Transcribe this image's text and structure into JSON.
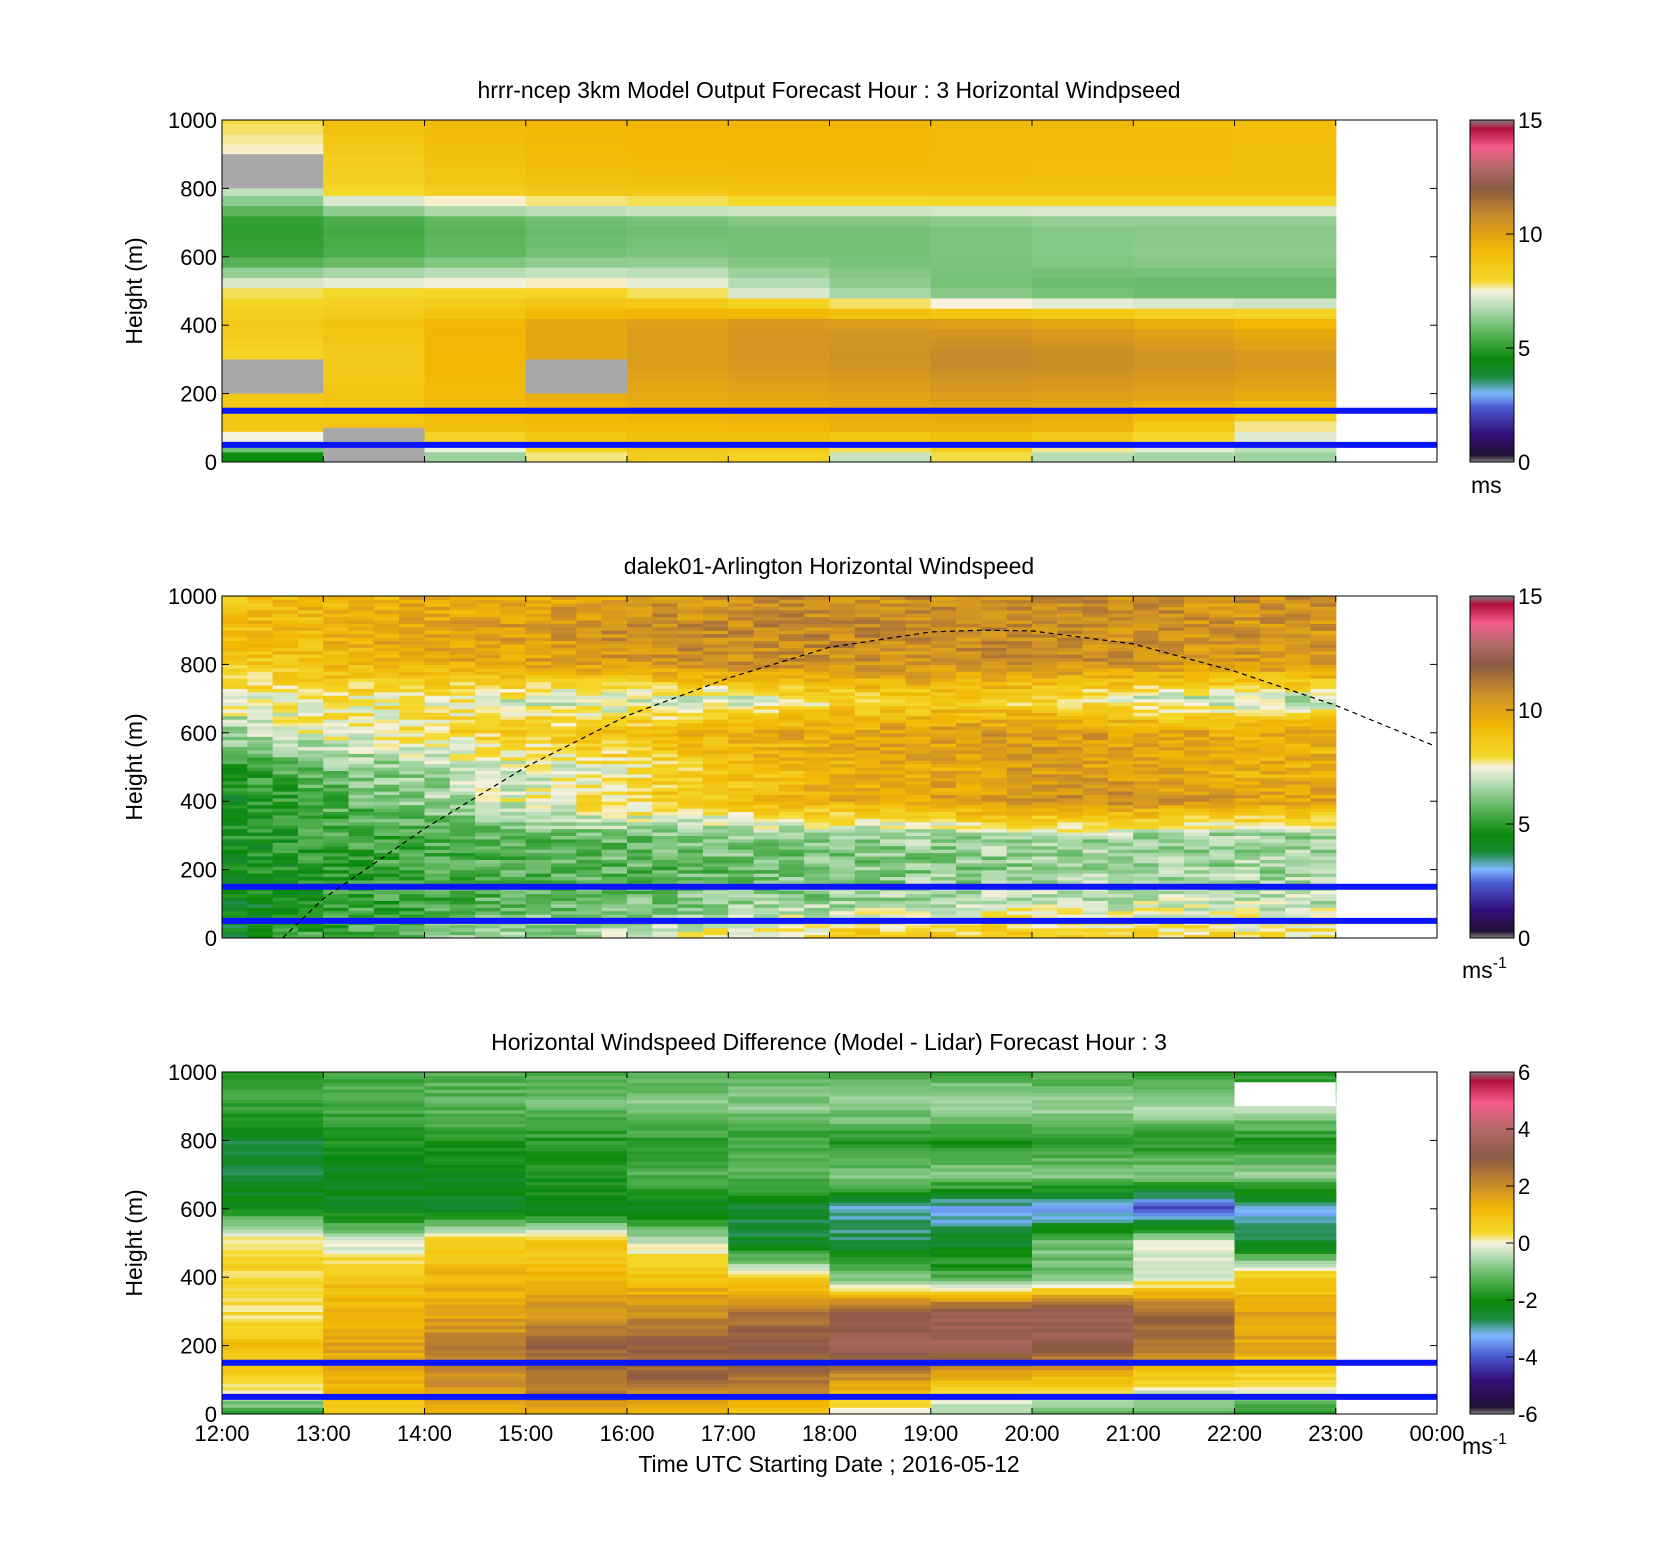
{
  "x_axis": {
    "ticks": [
      "12:00",
      "13:00",
      "14:00",
      "15:00",
      "16:00",
      "17:00",
      "18:00",
      "19:00",
      "20:00",
      "21:00",
      "22:00",
      "23:00",
      "00:00"
    ],
    "label": "Time UTC  Starting Date ; 2016-05-12"
  },
  "colormaps": {
    "speed": [
      [
        0.0,
        "#7f7f7f"
      ],
      [
        0.02,
        "#221133"
      ],
      [
        0.08,
        "#330f7a"
      ],
      [
        0.16,
        "#4a5ad0"
      ],
      [
        0.2,
        "#7db7ff"
      ],
      [
        0.25,
        "#1a8a3a"
      ],
      [
        0.3,
        "#0a8a0a"
      ],
      [
        0.38,
        "#5cb55c"
      ],
      [
        0.45,
        "#b4dcb4"
      ],
      [
        0.5,
        "#f6f2df"
      ],
      [
        0.53,
        "#f4d92a"
      ],
      [
        0.62,
        "#f2b705"
      ],
      [
        0.72,
        "#c98a2a"
      ],
      [
        0.8,
        "#8a5a44"
      ],
      [
        0.86,
        "#b46a6a"
      ],
      [
        0.92,
        "#f45d8a"
      ],
      [
        0.975,
        "#b30f3c"
      ],
      [
        1.0,
        "#7f7f7f"
      ]
    ],
    "diff": [
      [
        0.0,
        "#7f7f7f"
      ],
      [
        0.02,
        "#221133"
      ],
      [
        0.1,
        "#330f7a"
      ],
      [
        0.17,
        "#4a5ad0"
      ],
      [
        0.23,
        "#7db7ff"
      ],
      [
        0.28,
        "#1a8a3a"
      ],
      [
        0.33,
        "#0a8a0a"
      ],
      [
        0.4,
        "#5cb55c"
      ],
      [
        0.46,
        "#b4dcb4"
      ],
      [
        0.5,
        "#f6f2df"
      ],
      [
        0.53,
        "#f4d92a"
      ],
      [
        0.6,
        "#f2b705"
      ],
      [
        0.67,
        "#c98a2a"
      ],
      [
        0.75,
        "#8a5a44"
      ],
      [
        0.83,
        "#b46a6a"
      ],
      [
        0.91,
        "#f45d8a"
      ],
      [
        0.975,
        "#b30f3c"
      ],
      [
        1.0,
        "#7f7f7f"
      ]
    ]
  },
  "chart_data": [
    {
      "type": "heatmap",
      "title": "hrrr-ncep 3km Model Output   Forecast Hour : 3 Horizontal Windpseed",
      "xlabel": "",
      "ylabel": "Height (m)",
      "ylim": [
        0,
        1000
      ],
      "yticks": [
        "0",
        "200",
        "400",
        "600",
        "800",
        "1000"
      ],
      "colorbar": {
        "min": 0,
        "max": 15,
        "ticks": [
          "0",
          "5",
          "10",
          "15"
        ],
        "unit": "ms",
        "unit_sup": "",
        "cmap": "speed"
      },
      "reference_lines_m": [
        150,
        50
      ],
      "hours": [
        "12:00",
        "13:00",
        "14:00",
        "15:00",
        "16:00",
        "17:00",
        "18:00",
        "19:00",
        "20:00",
        "21:00",
        "22:00"
      ],
      "profiles_ms": [
        [
          3.8,
          4.5,
          6.0,
          7.5,
          8.3,
          8.0,
          6.5,
          7.6,
          6.3,
          6.2,
          6.3
        ],
        [
          8.7,
          8.8,
          9.0,
          9.1,
          9.2,
          9.3,
          9.5,
          9.5,
          9.4,
          8.6,
          7.6
        ],
        [
          8.6,
          8.8,
          9.2,
          9.6,
          9.8,
          9.9,
          10.0,
          10.2,
          10.1,
          10.0,
          9.8
        ],
        [
          8.0,
          8.5,
          9.3,
          9.8,
          10.2,
          10.4,
          10.6,
          10.9,
          10.8,
          10.6,
          10.4
        ],
        [
          8.6,
          8.9,
          9.4,
          9.9,
          10.2,
          10.4,
          10.4,
          10.3,
          10.1,
          9.8,
          9.5
        ],
        [
          7.8,
          7.9,
          8.0,
          8.1,
          7.7,
          7.0,
          6.4,
          6.0,
          5.8,
          5.7,
          5.7
        ],
        [
          5.2,
          5.5,
          5.8,
          6.0,
          6.1,
          6.0,
          6.0,
          6.1,
          6.2,
          6.3,
          6.3
        ],
        [
          5.0,
          5.3,
          5.6,
          5.8,
          5.9,
          6.0,
          6.0,
          6.1,
          6.2,
          6.2,
          6.2
        ],
        [
          7.0,
          8.2,
          8.6,
          8.8,
          8.9,
          9.0,
          9.0,
          9.0,
          9.0,
          9.0,
          9.0
        ],
        [
          7.5,
          8.5,
          9.0,
          9.2,
          9.3,
          9.3,
          9.3,
          9.2,
          9.1,
          9.1,
          9.0
        ],
        [
          7.9,
          9.0,
          9.2,
          9.3,
          9.3,
          9.3,
          9.3,
          9.2,
          9.2,
          9.1,
          9.1
        ]
      ],
      "gaps": [
        {
          "col": 0,
          "from": 8,
          "to": 9
        },
        {
          "col": 0,
          "from": 2,
          "to": 3
        },
        {
          "col": 1,
          "from": 0,
          "to": 1
        },
        {
          "col": 3,
          "from": 2,
          "to": 3
        }
      ]
    },
    {
      "type": "heatmap",
      "title": "dalek01-Arlington  Horizontal Windspeed",
      "xlabel": "",
      "ylabel": "Height (m)",
      "ylim": [
        0,
        1000
      ],
      "yticks": [
        "0",
        "200",
        "400",
        "600",
        "800",
        "1000"
      ],
      "colorbar": {
        "min": 0,
        "max": 15,
        "ticks": [
          "0",
          "5",
          "10",
          "15"
        ],
        "unit": "ms",
        "unit_sup": "-1",
        "cmap": "speed"
      },
      "reference_lines_m": [
        150,
        50
      ],
      "series": [
        {
          "name": "",
          "style": "dashed",
          "x_hours": [
            12.6,
            13,
            14,
            15,
            16,
            17,
            18,
            19,
            19.5,
            20,
            21,
            22,
            23,
            23.95
          ],
          "y_m": [
            0,
            115,
            320,
            500,
            650,
            760,
            850,
            895,
            900,
            898,
            860,
            780,
            680,
            565
          ]
        }
      ],
      "hours": [
        "12:00",
        "13:00",
        "14:00",
        "15:00",
        "16:00",
        "17:00",
        "18:00",
        "19:00",
        "20:00",
        "21:00",
        "22:00",
        "23:00"
      ],
      "profiles_ms": [
        [
          4.5,
          5.5,
          6.2,
          6.5,
          7.0,
          8.0,
          8.5,
          8.8,
          8.5,
          8.2,
          8.0
        ],
        [
          4.0,
          5.0,
          5.5,
          5.8,
          6.0,
          6.3,
          6.5,
          6.8,
          7.0,
          7.0,
          7.0
        ],
        [
          4.5,
          5.0,
          5.3,
          5.5,
          5.6,
          5.8,
          6.0,
          6.2,
          6.3,
          6.4,
          6.5
        ],
        [
          4.8,
          5.2,
          5.5,
          5.8,
          6.0,
          6.2,
          6.4,
          6.5,
          6.6,
          6.5,
          6.5
        ],
        [
          4.5,
          5.5,
          6.5,
          7.5,
          8.3,
          9.0,
          9.5,
          10.0,
          10.5,
          10.5,
          10.0
        ],
        [
          5.0,
          6.0,
          6.6,
          7.2,
          7.8,
          8.8,
          9.5,
          9.8,
          10.2,
          10.0,
          9.5
        ],
        [
          6.5,
          7.5,
          8.0,
          8.5,
          9.0,
          9.5,
          10.0,
          10.2,
          10.3,
          10.0,
          9.6
        ],
        [
          7.5,
          7.8,
          7.6,
          7.0,
          6.8,
          7.0,
          8.0,
          8.5,
          8.0,
          7.0,
          6.8
        ],
        [
          8.5,
          9.0,
          9.5,
          10.0,
          10.3,
          10.5,
          10.6,
          10.6,
          10.5,
          10.5,
          10.3
        ],
        [
          9.0,
          9.5,
          10.0,
          10.3,
          10.6,
          10.8,
          10.8,
          10.7,
          10.6,
          10.5,
          10.4
        ],
        [
          8.8,
          9.2,
          9.6,
          9.9,
          10.2,
          10.4,
          10.5,
          10.6,
          10.6,
          10.6,
          10.5
        ],
        [
          8.5,
          9.0,
          9.3,
          9.5,
          9.6,
          9.7,
          9.7,
          9.7,
          9.6,
          9.5,
          9.4
        ]
      ]
    },
    {
      "type": "heatmap",
      "title": "Horizontal Windspeed Difference (Model - Lidar) Forecast Hour : 3",
      "xlabel": "Time UTC  Starting Date ; 2016-05-12",
      "ylabel": "Height (m)",
      "ylim": [
        0,
        1000
      ],
      "yticks": [
        "0",
        "200",
        "400",
        "600",
        "800",
        "1000"
      ],
      "colorbar": {
        "min": -6,
        "max": 6,
        "ticks": [
          "-6",
          "-4",
          "-2",
          "0",
          "2",
          "4",
          "6"
        ],
        "unit": "ms",
        "unit_sup": "-1",
        "cmap": "diff"
      },
      "reference_lines_m": [
        150,
        50
      ],
      "hours": [
        "12:00",
        "13:00",
        "14:00",
        "15:00",
        "16:00",
        "17:00",
        "18:00",
        "19:00",
        "20:00",
        "21:00",
        "22:00"
      ],
      "profiles_ms": [
        [
          -1.5,
          0.8,
          1.2,
          1.5,
          1.2,
          0.9,
          -0.3,
          -0.8,
          -1.2,
          -1.5,
          -1.8
        ],
        [
          0.5,
          1.2,
          2.0,
          2.5,
          2.6,
          2.4,
          1.8,
          1.2,
          1.0,
          0.5,
          0.4
        ],
        [
          1.0,
          1.6,
          2.2,
          2.8,
          3.0,
          3.2,
          3.5,
          3.5,
          3.2,
          2.5,
          1.5
        ],
        [
          0.3,
          1.1,
          1.5,
          1.8,
          2.0,
          2.4,
          3.0,
          3.5,
          3.5,
          2.8,
          1.5
        ],
        [
          0.5,
          1.0,
          1.2,
          1.1,
          1.0,
          0.6,
          -1.0,
          -1.4,
          -1.0,
          -0.3,
          0.8
        ],
        [
          0.4,
          -0.3,
          0.8,
          0.8,
          -0.2,
          -2.5,
          -2.6,
          -2.4,
          -1.0,
          0.0,
          -2.5
        ],
        [
          -2.0,
          -2.3,
          -2.4,
          -2.3,
          -2.4,
          -2.6,
          -3.0,
          -3.4,
          -3.6,
          -4.2,
          -3.2
        ],
        [
          -2.6,
          -2.4,
          -2.2,
          -1.8,
          -1.4,
          -1.1,
          -0.9,
          -0.8,
          -0.8,
          -0.8,
          -0.8
        ],
        [
          -2.5,
          -1.9,
          -1.8,
          -1.7,
          -1.6,
          -1.6,
          -1.7,
          -1.8,
          -1.8,
          -1.8,
          -1.8
        ],
        [
          -1.6,
          -1.4,
          -1.2,
          -1.0,
          -0.9,
          -0.8,
          -0.7,
          -0.6,
          -0.6,
          -0.5,
          -0.5
        ],
        [
          -1.5,
          -1.4,
          -1.3,
          -1.2,
          -1.2,
          -1.2,
          -1.3,
          -1.4,
          -1.5,
          -1.8,
          -2.0
        ]
      ],
      "gaps": [
        {
          "col": 10,
          "from": 9,
          "to": 9.7
        }
      ]
    }
  ]
}
